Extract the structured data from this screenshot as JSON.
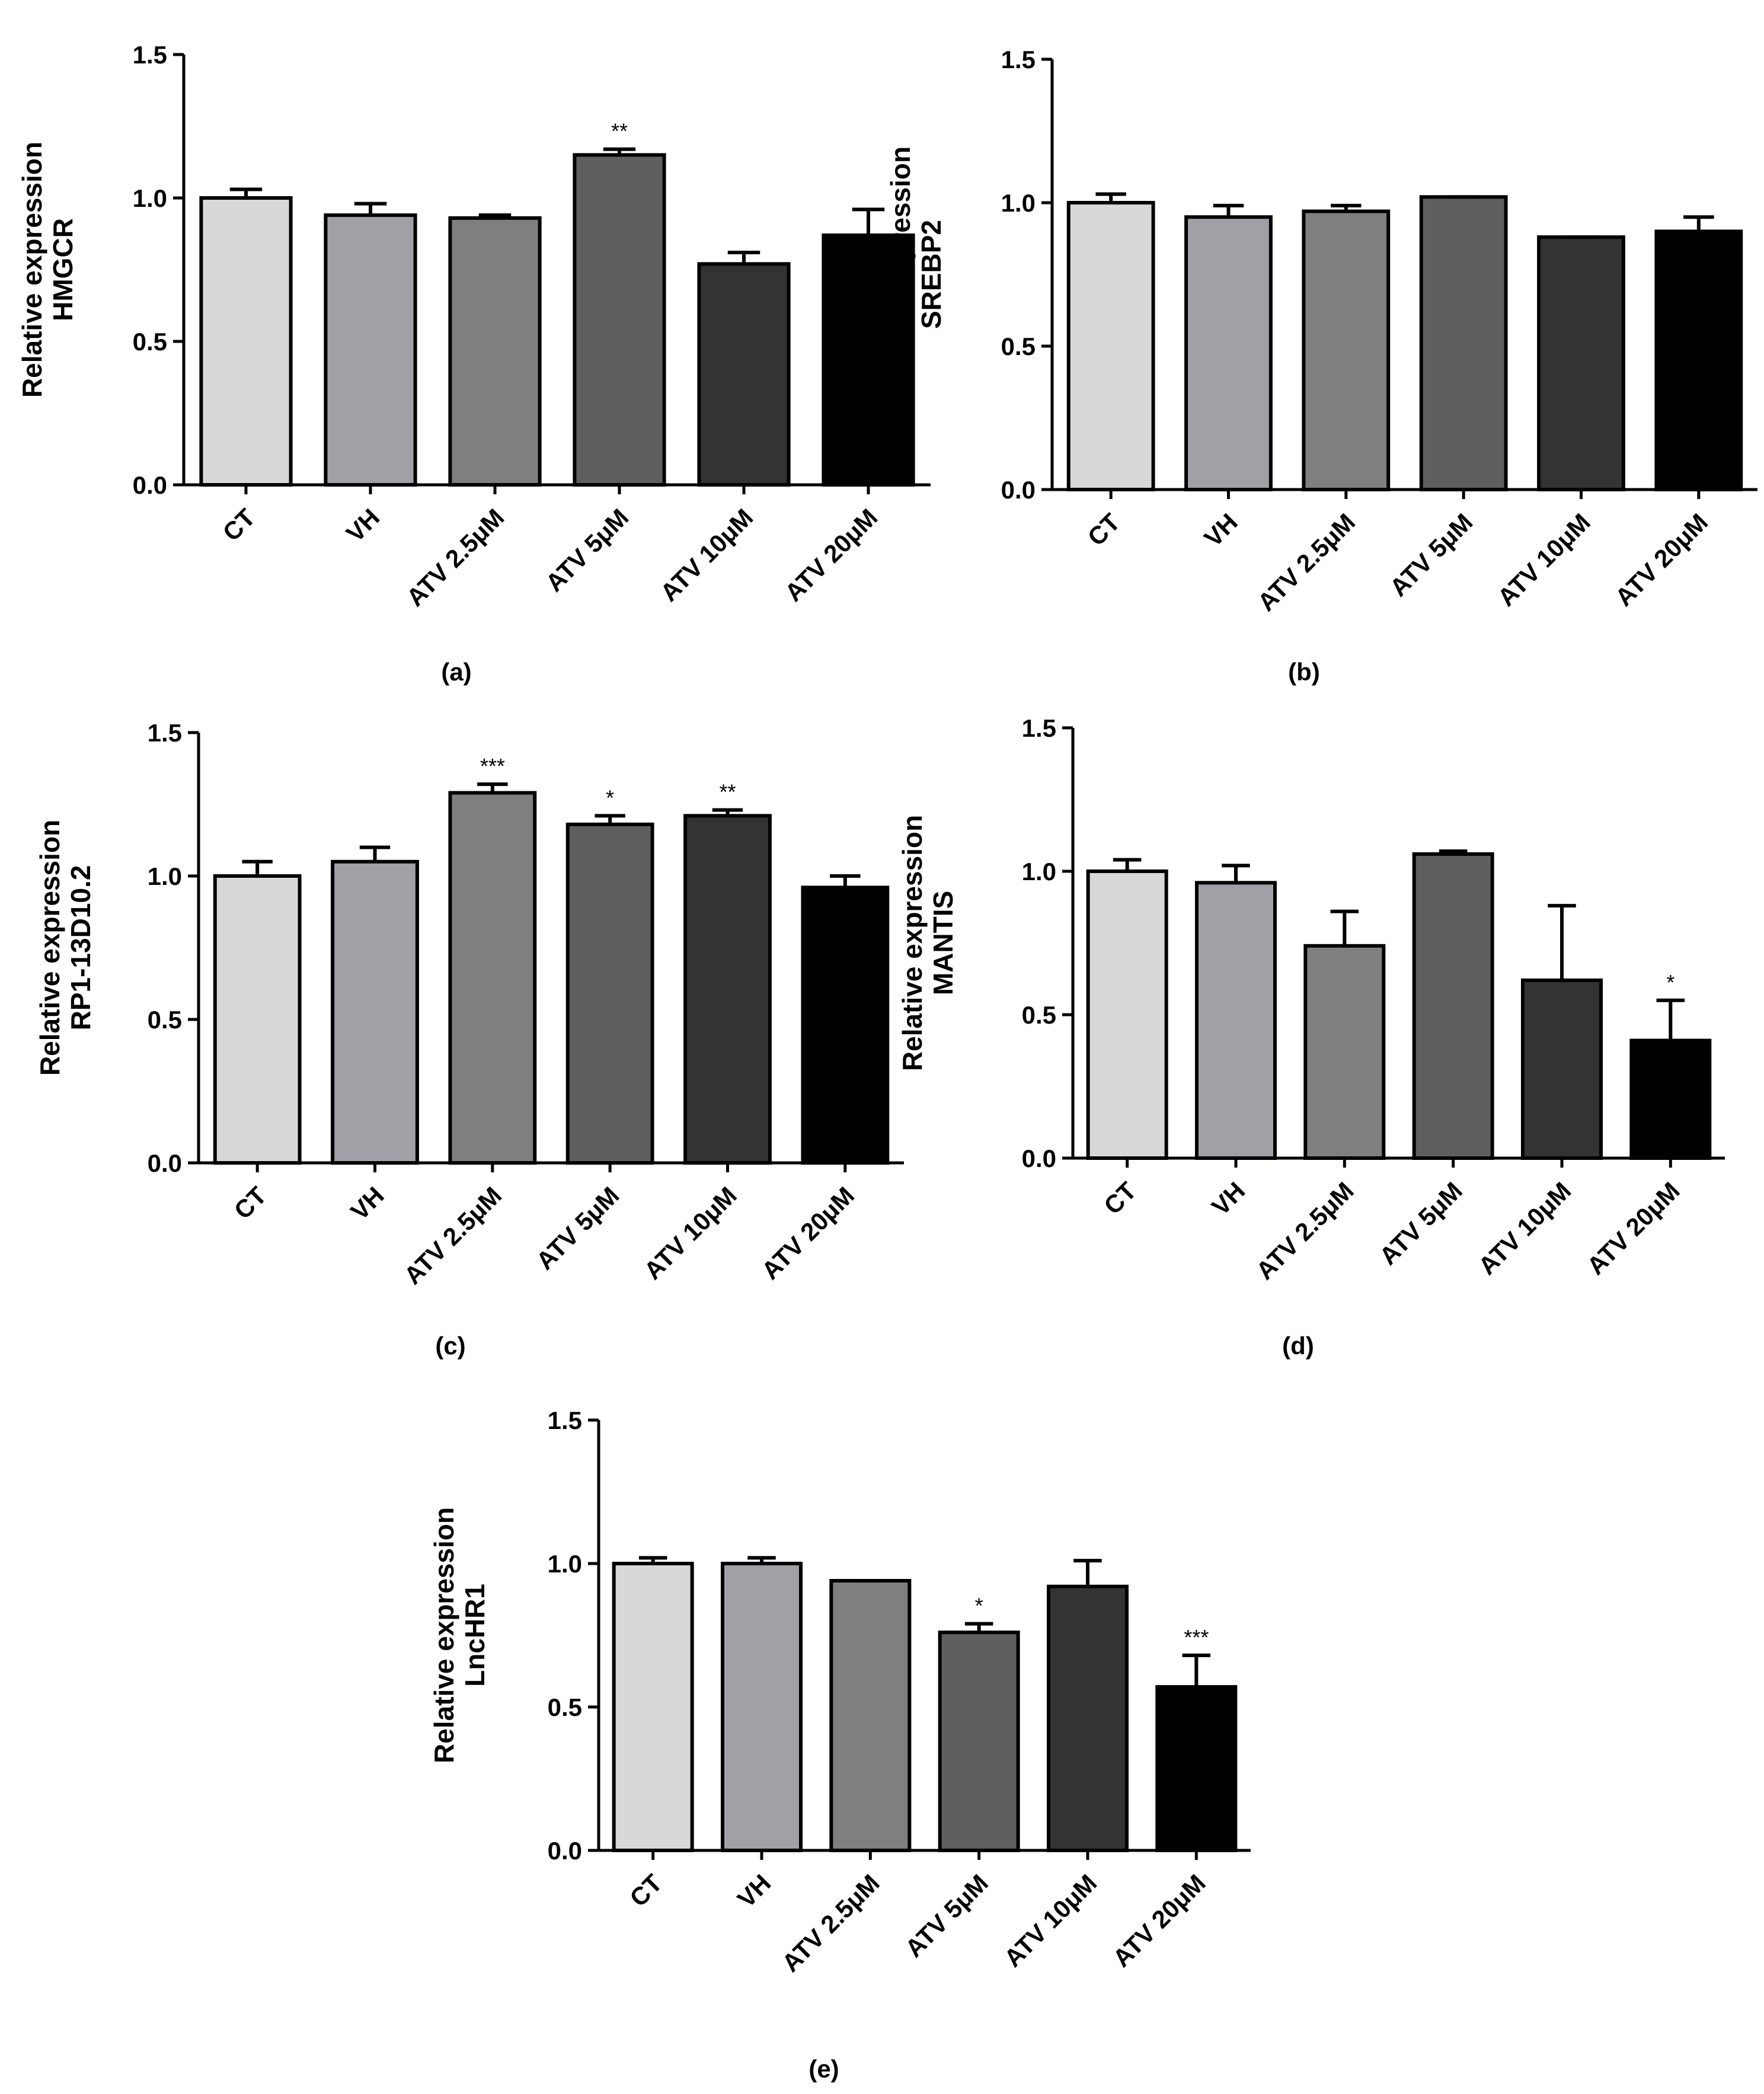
{
  "figure": {
    "categories": [
      "CT",
      "VH",
      "ATV 2.5μM",
      "ATV 5μM",
      "ATV 10μM",
      "ATV 20μM"
    ],
    "bar_colors": [
      "#d8d8d8",
      "#a0a0a6",
      "#7f7f7f",
      "#5f5f5f",
      "#333333",
      "#000000"
    ],
    "axis_color": "#000000"
  },
  "chart_data": [
    {
      "type": "bar",
      "panel": "(a)",
      "ylabel_line1": "Relative expression",
      "ylabel_line2": "HMGCR",
      "ylim": [
        0,
        1.5
      ],
      "yticks": [
        "0.0",
        "0.5",
        "1.0",
        "1.5"
      ],
      "categories": [
        "CT",
        "VH",
        "ATV 2.5μM",
        "ATV 5μM",
        "ATV 10μM",
        "ATV 20μM"
      ],
      "values": [
        1.0,
        0.94,
        0.93,
        1.15,
        0.77,
        0.87
      ],
      "errors": [
        0.03,
        0.04,
        0.01,
        0.02,
        0.04,
        0.09
      ],
      "significance": [
        "",
        "",
        "",
        "**",
        "",
        ""
      ]
    },
    {
      "type": "bar",
      "panel": "(b)",
      "ylabel_line1": "Relative expression",
      "ylabel_line2": "SREBP2",
      "ylim": [
        0,
        1.5
      ],
      "yticks": [
        "0.0",
        "0.5",
        "1.0",
        "1.5"
      ],
      "categories": [
        "CT",
        "VH",
        "ATV 2.5μM",
        "ATV 5μM",
        "ATV 10μM",
        "ATV 20μM"
      ],
      "values": [
        1.0,
        0.95,
        0.97,
        1.02,
        0.88,
        0.9
      ],
      "errors": [
        0.03,
        0.04,
        0.02,
        0.0,
        0.0,
        0.05
      ],
      "significance": [
        "",
        "",
        "",
        "",
        "",
        ""
      ]
    },
    {
      "type": "bar",
      "panel": "(c)",
      "ylabel_line1": "Relative expression",
      "ylabel_line2": "RP1-13D10.2",
      "ylim": [
        0,
        1.5
      ],
      "yticks": [
        "0.0",
        "0.5",
        "1.0",
        "1.5"
      ],
      "categories": [
        "CT",
        "VH",
        "ATV 2.5μM",
        "ATV 5μM",
        "ATV 10μM",
        "ATV 20μM"
      ],
      "values": [
        1.0,
        1.05,
        1.29,
        1.18,
        1.21,
        0.96
      ],
      "errors": [
        0.05,
        0.05,
        0.03,
        0.03,
        0.02,
        0.04
      ],
      "significance": [
        "",
        "",
        "***",
        "*",
        "**",
        ""
      ]
    },
    {
      "type": "bar",
      "panel": "(d)",
      "ylabel_line1": "Relative expression",
      "ylabel_line2": "MANTIS",
      "ylim": [
        0,
        1.5
      ],
      "yticks": [
        "0.0",
        "0.5",
        "1.0",
        "1.5"
      ],
      "categories": [
        "CT",
        "VH",
        "ATV 2.5μM",
        "ATV 5μM",
        "ATV 10μM",
        "ATV 20μM"
      ],
      "values": [
        1.0,
        0.96,
        0.74,
        1.06,
        0.62,
        0.41
      ],
      "errors": [
        0.04,
        0.06,
        0.12,
        0.01,
        0.26,
        0.14
      ],
      "significance": [
        "",
        "",
        "",
        "",
        "",
        "*"
      ]
    },
    {
      "type": "bar",
      "panel": "(e)",
      "ylabel_line1": "Relative expression",
      "ylabel_line2": "LncHR1",
      "ylim": [
        0,
        1.5
      ],
      "yticks": [
        "0.0",
        "0.5",
        "1.0",
        "1.5"
      ],
      "categories": [
        "CT",
        "VH",
        "ATV 2.5μM",
        "ATV 5μM",
        "ATV 10μM",
        "ATV 20μM"
      ],
      "values": [
        1.0,
        1.0,
        0.94,
        0.76,
        0.92,
        0.57
      ],
      "errors": [
        0.02,
        0.02,
        0.0,
        0.03,
        0.09,
        0.11
      ],
      "significance": [
        "",
        "",
        "",
        "*",
        "",
        "***"
      ]
    }
  ]
}
